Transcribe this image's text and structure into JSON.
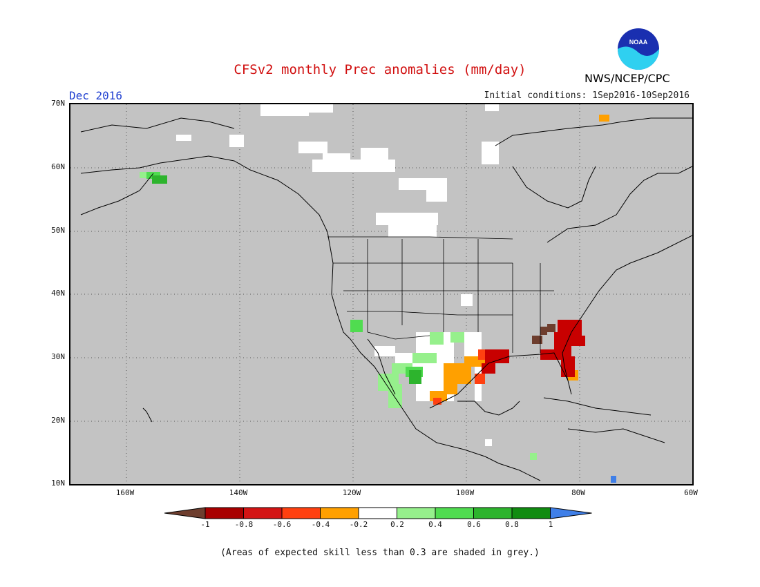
{
  "title": "CFSv2 monthly Prec anomalies (mm/day)",
  "month": "Dec 2016",
  "initial_conditions": "Initial conditions: 1Sep2016-10Sep2016",
  "agency": "NWS/NCEP/CPC",
  "logo_text": "NOAA",
  "lat_labels": [
    "70N",
    "60N",
    "50N",
    "40N",
    "30N",
    "20N",
    "10N"
  ],
  "lon_labels": [
    "160W",
    "140W",
    "120W",
    "100W",
    "80W",
    "60W"
  ],
  "colorbar": {
    "labels": [
      "-1",
      "-0.8",
      "-0.6",
      "-0.4",
      "-0.2",
      "0.2",
      "0.4",
      "0.6",
      "0.8",
      "1"
    ],
    "colors": [
      "#6e3e2e",
      "#a80000",
      "#d31414",
      "#ff4010",
      "#ffa000",
      "#ffffff",
      "#96f08c",
      "#50dc50",
      "#2db42d",
      "#118c11",
      "#3f7fe8"
    ]
  },
  "footnote": "(Areas of expected skill less than 0.3 are shaded in grey.)",
  "colors": {
    "background": "#c3c3c3",
    "title": "#d11010",
    "month": "#1f3fd0"
  }
}
